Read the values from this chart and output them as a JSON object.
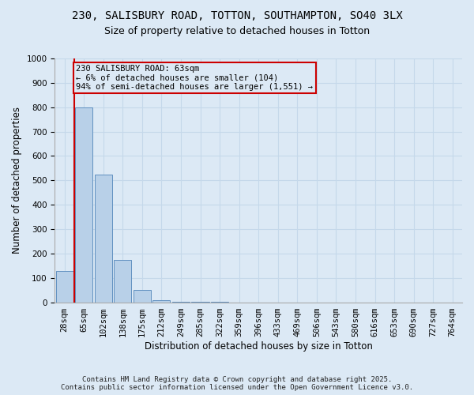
{
  "title": "230, SALISBURY ROAD, TOTTON, SOUTHAMPTON, SO40 3LX",
  "subtitle": "Size of property relative to detached houses in Totton",
  "xlabel": "Distribution of detached houses by size in Totton",
  "ylabel": "Number of detached properties",
  "categories": [
    "28sqm",
    "65sqm",
    "102sqm",
    "138sqm",
    "175sqm",
    "212sqm",
    "249sqm",
    "285sqm",
    "322sqm",
    "359sqm",
    "396sqm",
    "433sqm",
    "469sqm",
    "506sqm",
    "543sqm",
    "580sqm",
    "616sqm",
    "653sqm",
    "690sqm",
    "727sqm",
    "764sqm"
  ],
  "values": [
    130,
    800,
    525,
    175,
    50,
    8,
    3,
    1,
    1,
    0,
    0,
    0,
    0,
    0,
    0,
    0,
    0,
    0,
    0,
    0,
    0
  ],
  "bar_color": "#b8d0e8",
  "bar_edge_color": "#6090c0",
  "grid_color": "#c5d8ea",
  "background_color": "#dce9f5",
  "property_line_color": "#cc0000",
  "property_line_index": 1,
  "annotation_text": "230 SALISBURY ROAD: 63sqm\n← 6% of detached houses are smaller (104)\n94% of semi-detached houses are larger (1,551) →",
  "annotation_box_color": "#cc0000",
  "ylim": [
    0,
    1000
  ],
  "yticks": [
    0,
    100,
    200,
    300,
    400,
    500,
    600,
    700,
    800,
    900,
    1000
  ],
  "footer_line1": "Contains HM Land Registry data © Crown copyright and database right 2025.",
  "footer_line2": "Contains public sector information licensed under the Open Government Licence v3.0.",
  "title_fontsize": 10,
  "subtitle_fontsize": 9,
  "axis_label_fontsize": 8.5,
  "tick_fontsize": 7.5,
  "annotation_fontsize": 7.5,
  "footer_fontsize": 6.5
}
